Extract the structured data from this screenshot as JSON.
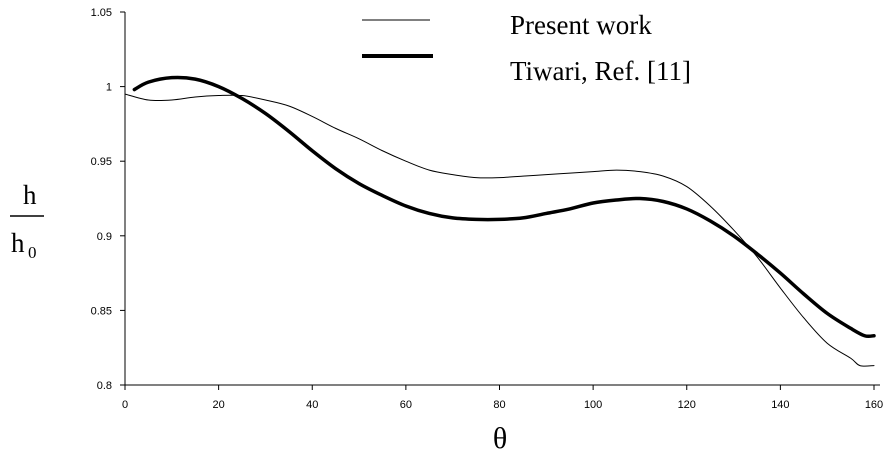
{
  "chart_data": {
    "type": "line",
    "title": "",
    "xlabel": "θ",
    "ylabel_numerator": "h",
    "ylabel_denominator_main": "h",
    "ylabel_denominator_sub": "0",
    "xlim": [
      0,
      160
    ],
    "ylim": [
      0.8,
      1.05
    ],
    "x_ticks": [
      0,
      20,
      40,
      60,
      80,
      100,
      120,
      140,
      160
    ],
    "x_tick_labels": [
      "0",
      "20",
      "40",
      "60",
      "80",
      "100",
      "120",
      "140",
      "160"
    ],
    "y_ticks": [
      0.8,
      0.85,
      0.9,
      0.95,
      1.0,
      1.05
    ],
    "y_tick_labels": [
      "0.8",
      "0.85",
      "0.9",
      "0.95",
      "1",
      "1.05"
    ],
    "grid": false,
    "legend_position": "top-center",
    "series": [
      {
        "name": "Present work",
        "line_style": "thin",
        "color": "#000000",
        "x": [
          0,
          5,
          10,
          15,
          20,
          25,
          30,
          35,
          40,
          45,
          50,
          55,
          60,
          65,
          70,
          75,
          80,
          85,
          90,
          95,
          100,
          105,
          110,
          115,
          120,
          125,
          130,
          135,
          140,
          145,
          150,
          155,
          157,
          160
        ],
        "y": [
          0.995,
          0.991,
          0.991,
          0.993,
          0.994,
          0.994,
          0.991,
          0.987,
          0.98,
          0.972,
          0.965,
          0.957,
          0.95,
          0.944,
          0.941,
          0.939,
          0.939,
          0.94,
          0.941,
          0.942,
          0.943,
          0.944,
          0.943,
          0.94,
          0.933,
          0.92,
          0.904,
          0.886,
          0.865,
          0.845,
          0.828,
          0.818,
          0.813,
          0.813
        ]
      },
      {
        "name": "Tiwari, Ref. [11]",
        "line_style": "thick",
        "color": "#000000",
        "x": [
          2,
          5,
          10,
          15,
          20,
          25,
          30,
          35,
          40,
          45,
          50,
          55,
          60,
          65,
          70,
          75,
          80,
          85,
          90,
          95,
          100,
          105,
          110,
          115,
          120,
          125,
          130,
          135,
          140,
          145,
          150,
          155,
          158,
          160
        ],
        "y": [
          0.998,
          1.003,
          1.006,
          1.005,
          1.0,
          0.992,
          0.982,
          0.97,
          0.957,
          0.945,
          0.935,
          0.927,
          0.92,
          0.915,
          0.912,
          0.911,
          0.911,
          0.912,
          0.915,
          0.918,
          0.922,
          0.924,
          0.925,
          0.923,
          0.918,
          0.91,
          0.9,
          0.888,
          0.875,
          0.861,
          0.848,
          0.838,
          0.833,
          0.833
        ]
      }
    ]
  }
}
